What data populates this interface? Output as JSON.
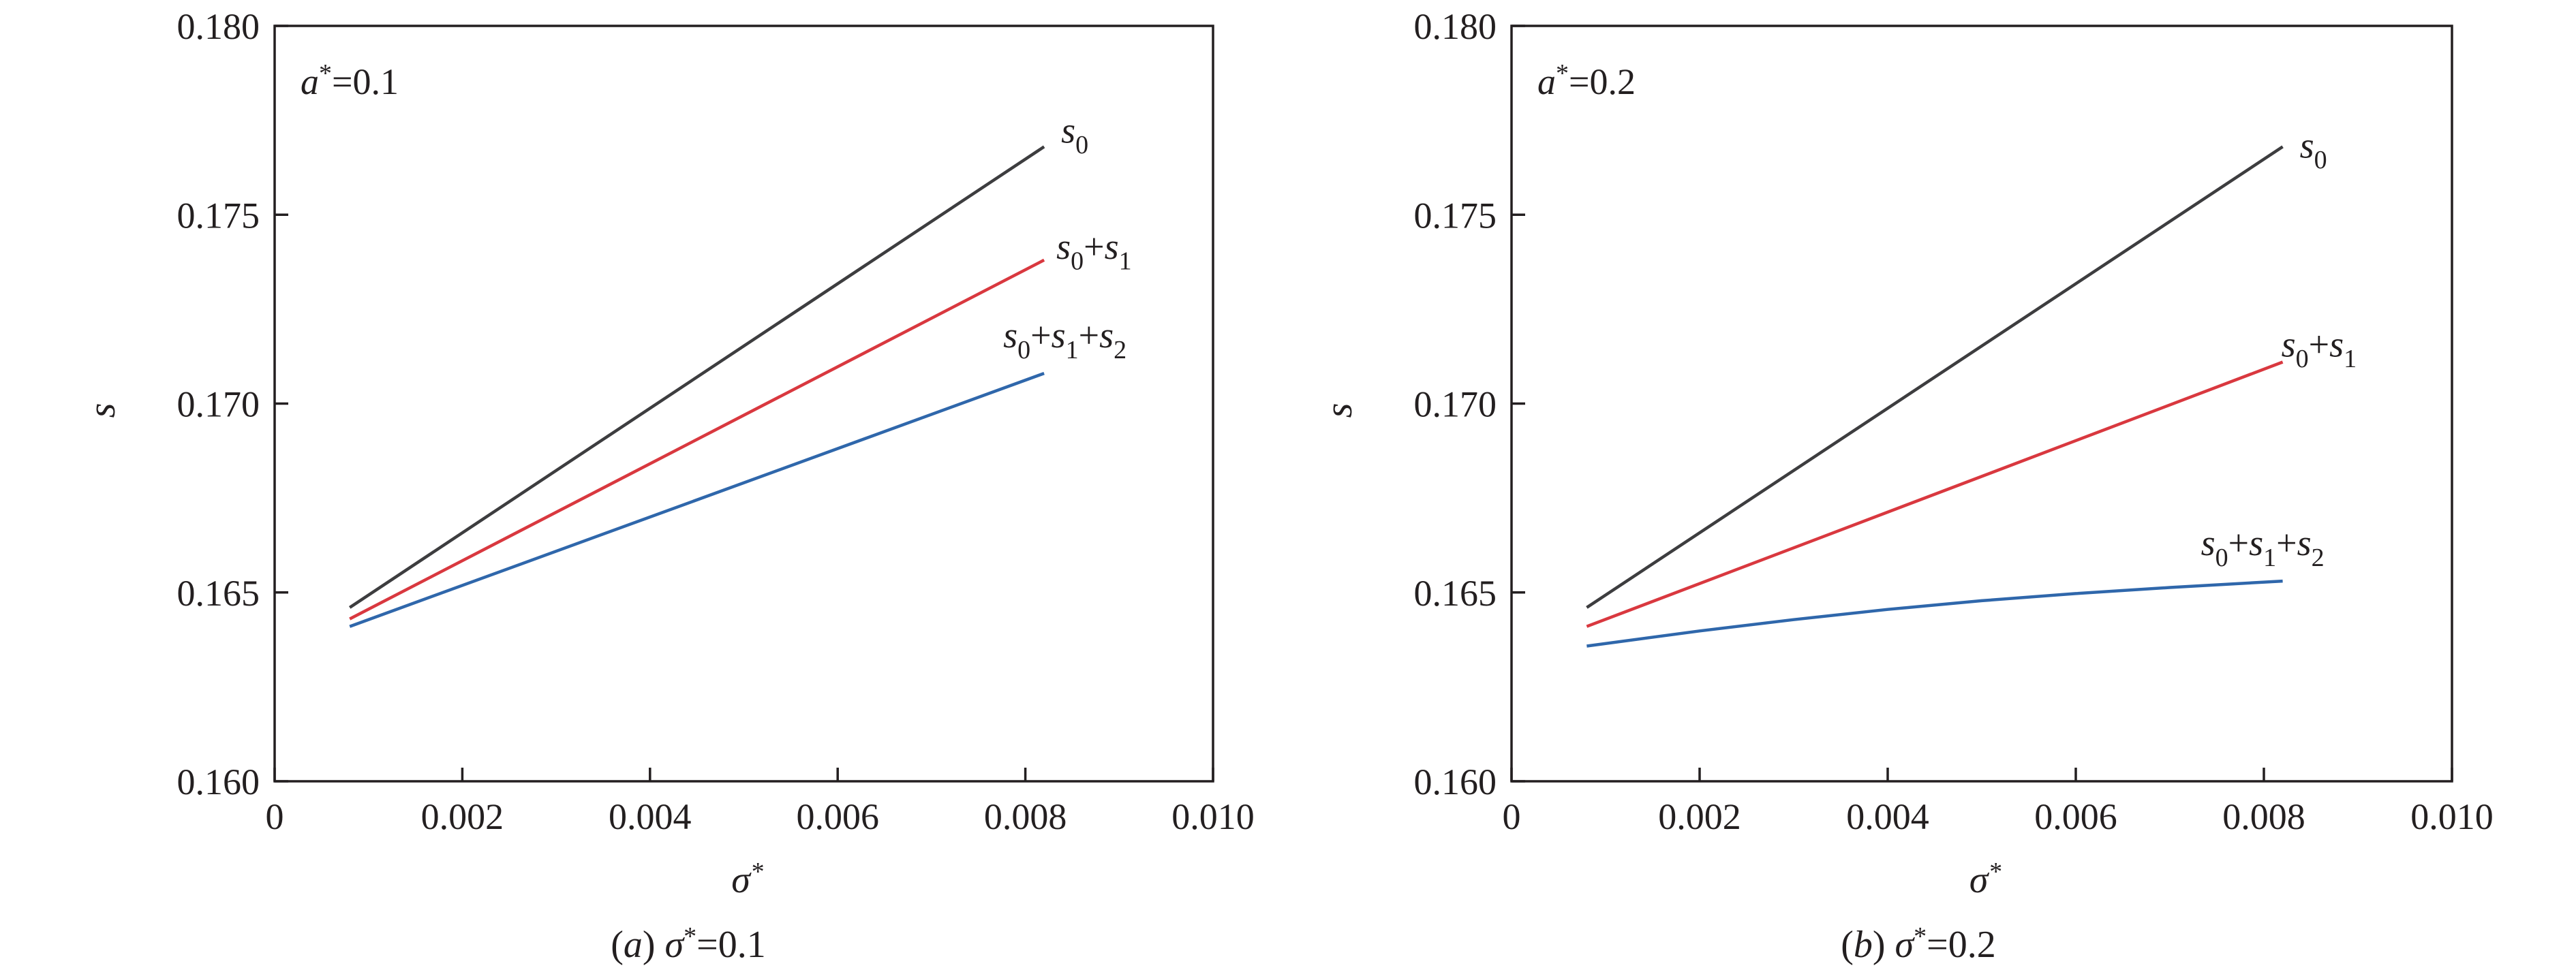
{
  "colors": {
    "s0": "#3d3d3f",
    "s0_s1": "#d9383f",
    "s0_s1_s2": "#2f67ab",
    "axes": "#231f20"
  },
  "chart_data": [
    {
      "type": "line",
      "caption": "(a) σ*=0.1",
      "param": "a*=0.1",
      "xlabel": "σ*",
      "ylabel": "s",
      "xlim": [
        0,
        0.01
      ],
      "ylim": [
        0.16,
        0.18
      ],
      "xticks": [
        "0",
        "0.002",
        "0.004",
        "0.006",
        "0.008",
        "0.010"
      ],
      "yticks": [
        "0.160",
        "0.165",
        "0.170",
        "0.175",
        "0.180"
      ],
      "grid": false,
      "series": [
        {
          "name": "s0",
          "color_key": "s0",
          "x": [
            0.0008,
            0.0082
          ],
          "y": [
            0.1646,
            0.1768
          ]
        },
        {
          "name": "s0+s1",
          "color_key": "s0_s1",
          "x": [
            0.0008,
            0.0082
          ],
          "y": [
            0.1643,
            0.1738
          ]
        },
        {
          "name": "s0+s1+s2",
          "color_key": "s0_s1_s2",
          "x": [
            0.0008,
            0.0082
          ],
          "y": [
            0.1641,
            0.1708
          ]
        }
      ]
    },
    {
      "type": "line",
      "caption": "(b) σ*=0.2",
      "param": "a*=0.2",
      "xlabel": "σ*",
      "ylabel": "s",
      "xlim": [
        0,
        0.01
      ],
      "ylim": [
        0.16,
        0.18
      ],
      "xticks": [
        "0",
        "0.002",
        "0.004",
        "0.006",
        "0.008",
        "0.010"
      ],
      "yticks": [
        "0.160",
        "0.165",
        "0.170",
        "0.175",
        "0.180"
      ],
      "grid": false,
      "series": [
        {
          "name": "s0",
          "color_key": "s0",
          "x": [
            0.0008,
            0.0082
          ],
          "y": [
            0.1646,
            0.1768
          ]
        },
        {
          "name": "s0+s1",
          "color_key": "s0_s1",
          "x": [
            0.0008,
            0.0082
          ],
          "y": [
            0.1641,
            0.1711
          ]
        },
        {
          "name": "s0+s1+s2",
          "color_key": "s0_s1_s2",
          "x": [
            0.0008,
            0.002,
            0.003,
            0.004,
            0.005,
            0.006,
            0.007,
            0.0082
          ],
          "y": [
            0.16358,
            0.16398,
            0.16428,
            0.16455,
            0.16478,
            0.16497,
            0.16513,
            0.1653
          ]
        }
      ]
    }
  ]
}
